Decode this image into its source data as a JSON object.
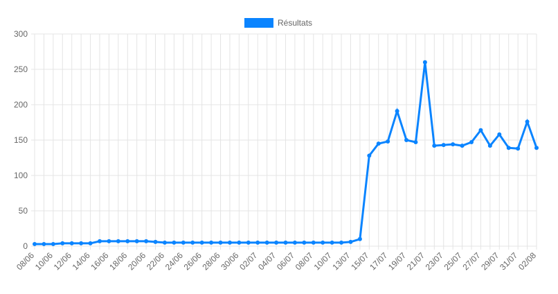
{
  "chart_data": {
    "type": "line",
    "categories": [
      "08/06",
      null,
      "10/06",
      null,
      "12/06",
      null,
      "14/06",
      null,
      "16/06",
      null,
      "18/06",
      null,
      "20/06",
      null,
      "22/06",
      null,
      "24/06",
      null,
      "26/06",
      null,
      "28/06",
      null,
      "30/06",
      null,
      "02/07",
      null,
      "04/07",
      null,
      "06/07",
      null,
      "08/07",
      null,
      "10/07",
      null,
      "13/07",
      null,
      "15/07",
      null,
      "17/07",
      null,
      "19/07",
      null,
      "21/07",
      null,
      "23/07",
      null,
      "25/07",
      null,
      "27/07",
      null,
      "29/07",
      null,
      "31/07",
      null,
      "02/08"
    ],
    "series": [
      {
        "name": "Résultats",
        "color": "#0a84ff",
        "values": [
          3,
          3,
          3,
          4,
          4,
          4,
          4,
          7,
          7,
          7,
          7,
          7,
          7,
          6,
          5,
          5,
          5,
          5,
          5,
          5,
          5,
          5,
          5,
          5,
          5,
          5,
          5,
          5,
          5,
          5,
          5,
          5,
          5,
          5,
          6,
          10,
          128,
          145,
          148,
          191,
          150,
          147,
          260,
          142,
          143,
          144,
          142,
          147,
          164,
          142,
          158,
          139,
          138,
          176,
          139
        ]
      }
    ],
    "ylim": [
      0,
      300
    ],
    "yticks": [
      0,
      50,
      100,
      150,
      200,
      250,
      300
    ],
    "grid": true,
    "legend": "top"
  }
}
